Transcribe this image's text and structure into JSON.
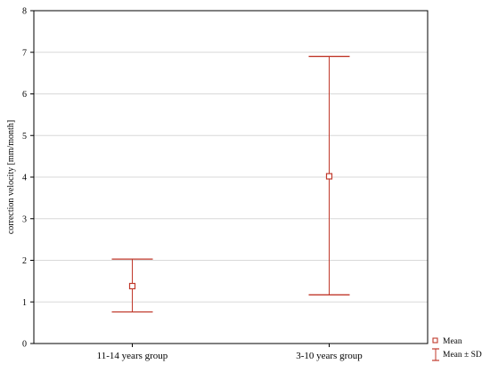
{
  "chart_data": {
    "type": "errorbar",
    "categories": [
      "11-14 years group",
      "3-10 years group"
    ],
    "series": [
      {
        "name": "Mean",
        "values": [
          1.38,
          4.02
        ]
      },
      {
        "name": "Mean ± SD",
        "lower": [
          0.76,
          1.17
        ],
        "upper": [
          2.03,
          6.9
        ]
      }
    ],
    "ylabel": "correction velocity [mm/month]",
    "xlabel": "",
    "ylim": [
      0,
      8
    ],
    "yticks": [
      "0",
      "1",
      "2",
      "3",
      "4",
      "5",
      "6",
      "7",
      "8"
    ],
    "grid": true,
    "legend": {
      "placement": "bottom-right",
      "entries": [
        {
          "label": "Mean",
          "marker": "square"
        },
        {
          "label": "Mean ± SD",
          "marker": "whisker"
        }
      ]
    },
    "colors": {
      "series": "#c0392b",
      "grid": "#d9d9d9",
      "axis": "#000000"
    }
  }
}
